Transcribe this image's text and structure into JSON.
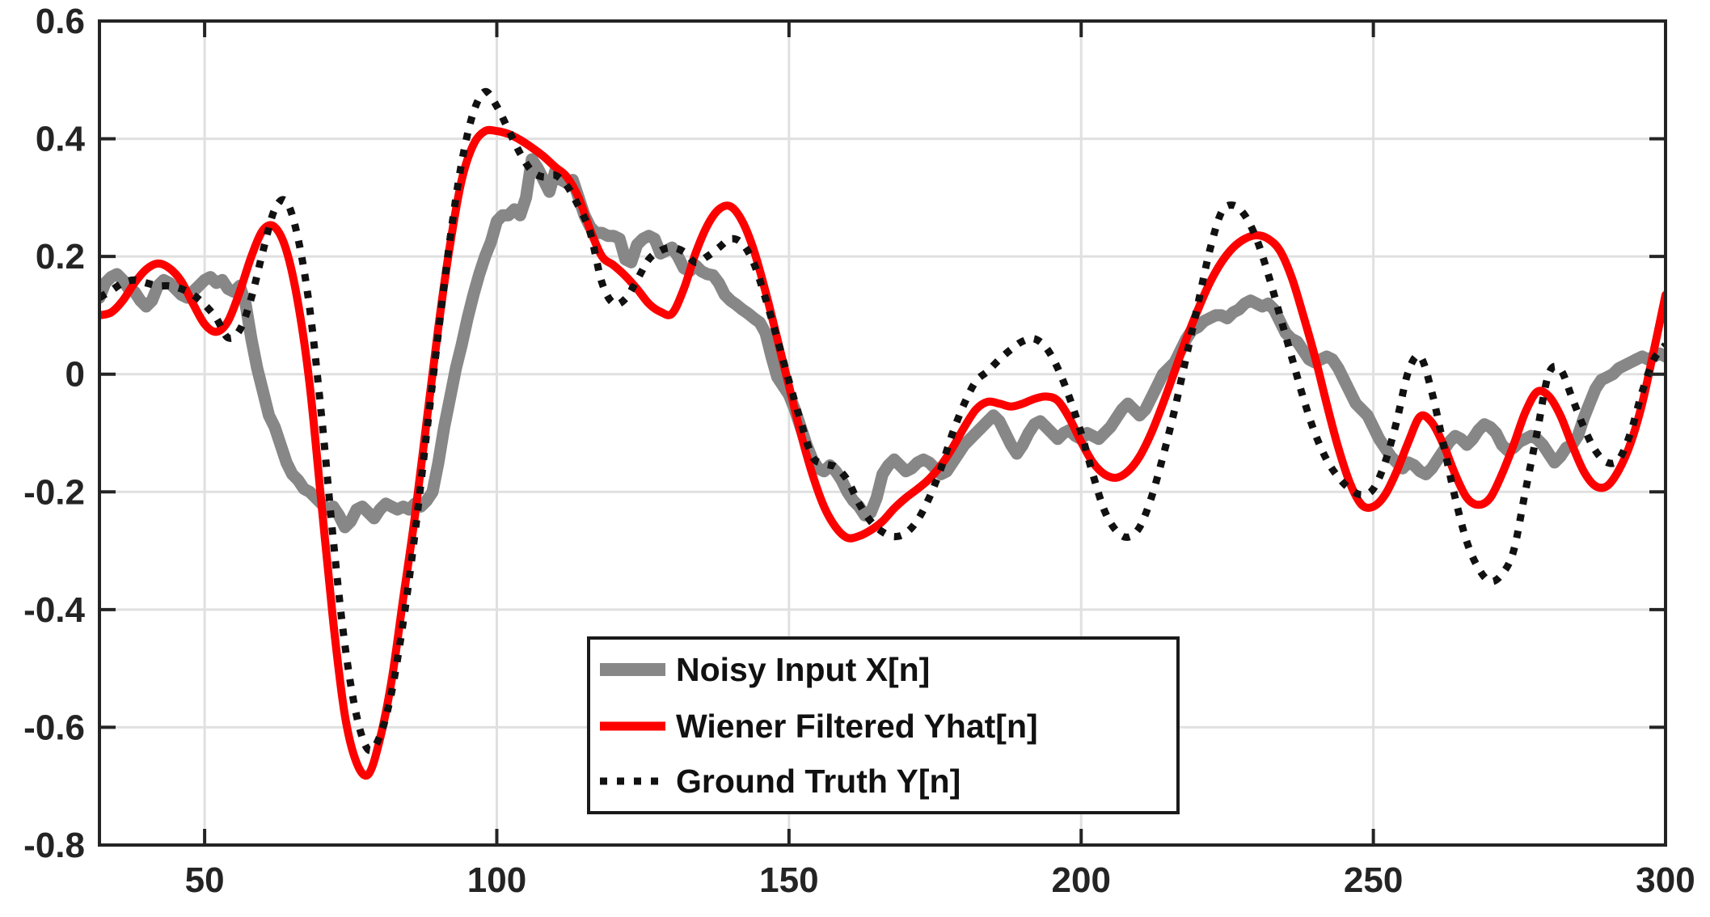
{
  "figure": {
    "background": "#ffffff"
  },
  "axes": {
    "xlim": [
      32,
      300
    ],
    "ylim": [
      -0.8,
      0.6
    ],
    "xticks": [
      50,
      100,
      150,
      200,
      250,
      300
    ],
    "yticks": [
      0.6,
      0.4,
      0.2,
      0,
      -0.2,
      -0.4,
      -0.6,
      -0.8
    ],
    "xtick_labels": [
      "50",
      "100",
      "150",
      "200",
      "250",
      "300"
    ],
    "ytick_labels": [
      "0.6",
      "0.4",
      "0.2",
      "0",
      "-0.2",
      "-0.4",
      "-0.6",
      "-0.8"
    ],
    "grid": true,
    "grid_color": "#e0e0e0",
    "axis_color": "#242424",
    "tick_label_color": "#242424"
  },
  "legend": {
    "border_color": "#1a1a1a",
    "fill_color": "#ffffff",
    "text_color": "#111111",
    "items": [
      {
        "label": "Noisy Input X[n]",
        "color": "#878787",
        "style": "solid",
        "sample_width": 16
      },
      {
        "label": "Wiener Filtered Yhat[n]",
        "color": "#fd0000",
        "style": "solid",
        "sample_width": 11
      },
      {
        "label": "Ground Truth Y[n]",
        "color": "#111111",
        "style": "dotted",
        "sample_width": 9
      }
    ]
  },
  "chart_data": {
    "type": "line",
    "title": "",
    "xlabel": "",
    "ylabel": "",
    "xlim": [
      32,
      300
    ],
    "ylim": [
      -0.8,
      0.6
    ],
    "grid": true,
    "legend_position": "lower-center-left",
    "series": [
      {
        "name": "Noisy Input X[n]",
        "color": "#878787",
        "style": "solid",
        "line_width": 15,
        "smooth": false,
        "x_start": 32,
        "x_step": 1,
        "values": [
          0.13,
          0.155,
          0.165,
          0.17,
          0.16,
          0.145,
          0.14,
          0.125,
          0.115,
          0.125,
          0.15,
          0.16,
          0.155,
          0.145,
          0.135,
          0.13,
          0.14,
          0.15,
          0.16,
          0.165,
          0.155,
          0.16,
          0.145,
          0.14,
          0.15,
          0.12,
          0.06,
          0.01,
          -0.03,
          -0.07,
          -0.09,
          -0.12,
          -0.15,
          -0.17,
          -0.18,
          -0.195,
          -0.2,
          -0.21,
          -0.22,
          -0.23,
          -0.225,
          -0.24,
          -0.26,
          -0.25,
          -0.23,
          -0.225,
          -0.235,
          -0.245,
          -0.23,
          -0.22,
          -0.225,
          -0.23,
          -0.225,
          -0.23,
          -0.22,
          -0.225,
          -0.215,
          -0.2,
          -0.15,
          -0.09,
          -0.04,
          0.01,
          0.05,
          0.095,
          0.135,
          0.17,
          0.2,
          0.225,
          0.26,
          0.27,
          0.27,
          0.28,
          0.27,
          0.3,
          0.365,
          0.35,
          0.33,
          0.31,
          0.345,
          0.33,
          0.325,
          0.33,
          0.3,
          0.27,
          0.25,
          0.24,
          0.24,
          0.235,
          0.235,
          0.23,
          0.195,
          0.19,
          0.22,
          0.23,
          0.235,
          0.23,
          0.205,
          0.21,
          0.215,
          0.2,
          0.18,
          0.175,
          0.185,
          0.175,
          0.17,
          0.168,
          0.155,
          0.135,
          0.125,
          0.118,
          0.11,
          0.103,
          0.095,
          0.088,
          0.07,
          0.03,
          -0.005,
          -0.02,
          -0.035,
          -0.06,
          -0.09,
          -0.12,
          -0.145,
          -0.16,
          -0.165,
          -0.155,
          -0.165,
          -0.18,
          -0.2,
          -0.215,
          -0.225,
          -0.24,
          -0.235,
          -0.21,
          -0.17,
          -0.155,
          -0.145,
          -0.155,
          -0.165,
          -0.16,
          -0.15,
          -0.145,
          -0.15,
          -0.16,
          -0.17,
          -0.165,
          -0.15,
          -0.135,
          -0.12,
          -0.11,
          -0.1,
          -0.09,
          -0.08,
          -0.07,
          -0.08,
          -0.1,
          -0.12,
          -0.135,
          -0.12,
          -0.1,
          -0.085,
          -0.08,
          -0.09,
          -0.1,
          -0.11,
          -0.1,
          -0.095,
          -0.105,
          -0.11,
          -0.1,
          -0.105,
          -0.11,
          -0.1,
          -0.09,
          -0.075,
          -0.06,
          -0.05,
          -0.06,
          -0.07,
          -0.06,
          -0.04,
          -0.02,
          0.0,
          0.01,
          0.02,
          0.04,
          0.06,
          0.075,
          0.08,
          0.09,
          0.095,
          0.1,
          0.1,
          0.095,
          0.105,
          0.11,
          0.12,
          0.125,
          0.12,
          0.115,
          0.12,
          0.11,
          0.09,
          0.07,
          0.06,
          0.055,
          0.04,
          0.025,
          0.02,
          0.025,
          0.03,
          0.025,
          0.01,
          -0.01,
          -0.03,
          -0.05,
          -0.06,
          -0.07,
          -0.09,
          -0.11,
          -0.125,
          -0.14,
          -0.15,
          -0.16,
          -0.15,
          -0.155,
          -0.165,
          -0.17,
          -0.16,
          -0.145,
          -0.13,
          -0.115,
          -0.105,
          -0.11,
          -0.12,
          -0.11,
          -0.095,
          -0.085,
          -0.09,
          -0.1,
          -0.12,
          -0.13,
          -0.125,
          -0.115,
          -0.11,
          -0.105,
          -0.11,
          -0.12,
          -0.135,
          -0.15,
          -0.14,
          -0.125,
          -0.12,
          -0.105,
          -0.075,
          -0.05,
          -0.025,
          -0.01,
          -0.005,
          0.0,
          0.01,
          0.015,
          0.02,
          0.025,
          0.03,
          0.025,
          0.03,
          0.035,
          0.03
        ]
      },
      {
        "name": "Wiener Filtered Yhat[n]",
        "color": "#fd0000",
        "style": "solid",
        "line_width": 10,
        "smooth": true,
        "x_start": 32,
        "x_step": 2,
        "values": [
          0.1,
          0.105,
          0.125,
          0.155,
          0.178,
          0.188,
          0.18,
          0.158,
          0.12,
          0.085,
          0.072,
          0.09,
          0.14,
          0.2,
          0.245,
          0.25,
          0.21,
          0.12,
          -0.02,
          -0.22,
          -0.42,
          -0.58,
          -0.66,
          -0.68,
          -0.62,
          -0.52,
          -0.38,
          -0.24,
          -0.08,
          0.08,
          0.22,
          0.33,
          0.39,
          0.413,
          0.413,
          0.408,
          0.398,
          0.385,
          0.37,
          0.352,
          0.335,
          0.3,
          0.245,
          0.2,
          0.185,
          0.167,
          0.145,
          0.12,
          0.106,
          0.103,
          0.145,
          0.205,
          0.252,
          0.28,
          0.285,
          0.26,
          0.21,
          0.14,
          0.06,
          -0.02,
          -0.1,
          -0.17,
          -0.225,
          -0.26,
          -0.278,
          -0.275,
          -0.265,
          -0.25,
          -0.228,
          -0.21,
          -0.195,
          -0.178,
          -0.155,
          -0.125,
          -0.09,
          -0.06,
          -0.047,
          -0.05,
          -0.055,
          -0.05,
          -0.042,
          -0.038,
          -0.045,
          -0.075,
          -0.115,
          -0.15,
          -0.17,
          -0.176,
          -0.165,
          -0.14,
          -0.1,
          -0.05,
          0.005,
          0.06,
          0.11,
          0.155,
          0.19,
          0.215,
          0.23,
          0.236,
          0.23,
          0.21,
          0.165,
          0.1,
          0.03,
          -0.05,
          -0.125,
          -0.185,
          -0.222,
          -0.225,
          -0.205,
          -0.165,
          -0.115,
          -0.072,
          -0.082,
          -0.12,
          -0.17,
          -0.21,
          -0.222,
          -0.21,
          -0.17,
          -0.12,
          -0.065,
          -0.03,
          -0.037,
          -0.07,
          -0.12,
          -0.165,
          -0.19,
          -0.19,
          -0.163,
          -0.118,
          -0.05,
          0.04,
          0.135
        ]
      },
      {
        "name": "Ground Truth Y[n]",
        "color": "#111111",
        "style": "dotted",
        "line_width": 9,
        "smooth": true,
        "x_start": 32,
        "x_step": 2,
        "values": [
          0.13,
          0.142,
          0.155,
          0.16,
          0.155,
          0.15,
          0.15,
          0.145,
          0.135,
          0.118,
          0.095,
          0.062,
          0.075,
          0.13,
          0.21,
          0.28,
          0.293,
          0.23,
          0.11,
          -0.07,
          -0.28,
          -0.46,
          -0.58,
          -0.638,
          -0.615,
          -0.54,
          -0.42,
          -0.27,
          -0.1,
          0.07,
          0.23,
          0.36,
          0.445,
          0.48,
          0.455,
          0.415,
          0.375,
          0.345,
          0.335,
          0.338,
          0.32,
          0.285,
          0.24,
          0.155,
          0.12,
          0.128,
          0.16,
          0.195,
          0.21,
          0.215,
          0.208,
          0.19,
          0.2,
          0.215,
          0.23,
          0.222,
          0.188,
          0.128,
          0.06,
          -0.012,
          -0.08,
          -0.14,
          -0.152,
          -0.158,
          -0.18,
          -0.22,
          -0.25,
          -0.268,
          -0.276,
          -0.27,
          -0.248,
          -0.21,
          -0.16,
          -0.1,
          -0.05,
          -0.012,
          0.005,
          0.025,
          0.042,
          0.056,
          0.06,
          0.045,
          0.01,
          -0.04,
          -0.1,
          -0.17,
          -0.232,
          -0.266,
          -0.277,
          -0.26,
          -0.21,
          -0.14,
          -0.06,
          0.03,
          0.12,
          0.21,
          0.275,
          0.287,
          0.27,
          0.23,
          0.17,
          0.1,
          0.03,
          -0.04,
          -0.1,
          -0.145,
          -0.175,
          -0.195,
          -0.205,
          -0.195,
          -0.15,
          -0.08,
          0.005,
          0.03,
          -0.03,
          -0.12,
          -0.21,
          -0.285,
          -0.33,
          -0.352,
          -0.34,
          -0.3,
          -0.2,
          -0.1,
          0.0,
          0.008,
          -0.04,
          -0.09,
          -0.13,
          -0.15,
          -0.145,
          -0.1,
          -0.03,
          0.025,
          0.05
        ]
      }
    ]
  }
}
